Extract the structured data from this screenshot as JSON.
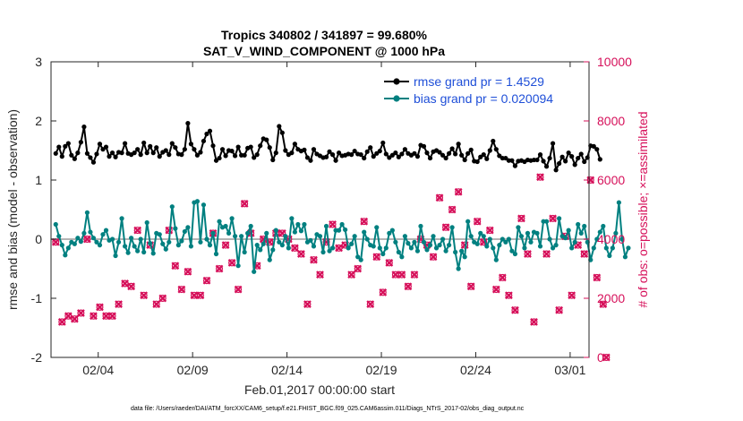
{
  "chart_data": {
    "type": "line",
    "title": "Tropics 340802 / 341897 = 99.680%",
    "subtitle": "SAT_V_WIND_COMPONENT @ 1000 hPa",
    "xlabel": "Feb.01,2017 00:00:00 start",
    "ylabel_left": "rmse and bias (model - observation)",
    "ylabel_right": "# of obs: o=possible; ×=assimilated",
    "footnote": "data file: /Users/raeder/DAI/ATM_forcXX/CAM6_setup/f.e21.FHIST_BGC.f09_025.CAM6assim.011/Diags_NTrS_2017-02/obs_diag_output.nc",
    "xlim": [
      1,
      29.5
    ],
    "ylim_left": [
      -2,
      3
    ],
    "ylim_right": [
      0,
      10000
    ],
    "x_ticks": [
      3.5,
      8.5,
      13.5,
      18.5,
      23.5,
      28.5
    ],
    "x_tick_labels": [
      "02/04",
      "02/09",
      "02/14",
      "02/19",
      "02/24",
      "03/01"
    ],
    "y_ticks_left": [
      -2,
      -1,
      0,
      1,
      2,
      3
    ],
    "y_ticks_right": [
      0,
      2000,
      4000,
      6000,
      8000,
      10000
    ],
    "zero_line": 0,
    "colors": {
      "rmse": "#000000",
      "bias": "#008080",
      "obs": "#d6105a",
      "legend_text": "#1f4fd8",
      "zero_line": "#b4b4b4"
    },
    "series": [
      {
        "name": "rmse grand pr = 1.4529",
        "axis": "left",
        "marker": "circle",
        "color": "#000000",
        "values": [
          1.45,
          1.56,
          1.4,
          1.57,
          1.62,
          1.42,
          1.36,
          1.46,
          1.64,
          1.9,
          1.45,
          1.38,
          1.3,
          1.44,
          1.61,
          1.52,
          1.56,
          1.4,
          1.46,
          1.39,
          1.47,
          1.46,
          1.62,
          1.45,
          1.43,
          1.46,
          1.52,
          1.43,
          1.63,
          1.46,
          1.57,
          1.46,
          1.55,
          1.4,
          1.47,
          1.5,
          1.43,
          1.62,
          1.55,
          1.44,
          1.43,
          1.52,
          1.96,
          1.61,
          1.52,
          1.42,
          1.47,
          1.66,
          1.78,
          1.83,
          1.58,
          1.33,
          1.37,
          1.52,
          1.41,
          1.5,
          1.49,
          1.41,
          1.56,
          1.42,
          1.42,
          1.54,
          1.56,
          1.38,
          1.43,
          1.58,
          1.7,
          1.68,
          1.55,
          1.34,
          1.46,
          1.91,
          1.8,
          1.5,
          1.43,
          1.46,
          1.61,
          1.52,
          1.49,
          1.51,
          1.38,
          1.33,
          1.52,
          1.44,
          1.41,
          1.38,
          1.39,
          1.48,
          1.43,
          1.33,
          1.46,
          1.41,
          1.42,
          1.44,
          1.43,
          1.49,
          1.44,
          1.43,
          1.37,
          1.48,
          1.55,
          1.4,
          1.45,
          1.49,
          1.63,
          1.44,
          1.38,
          1.42,
          1.46,
          1.39,
          1.44,
          1.52,
          1.45,
          1.42,
          1.45,
          1.4,
          1.59,
          1.57,
          1.46,
          1.37,
          1.48,
          1.5,
          1.47,
          1.42,
          1.37,
          1.45,
          1.53,
          1.44,
          1.61,
          1.42,
          1.34,
          1.45,
          1.51,
          1.32,
          1.31,
          1.39,
          1.43,
          1.36,
          1.5,
          1.66,
          1.52,
          1.41,
          1.37,
          1.37,
          1.33,
          1.33,
          1.24,
          1.32,
          1.33,
          1.31,
          1.34,
          1.33,
          1.34,
          1.34,
          1.43,
          1.32,
          1.23,
          1.37,
          1.62,
          1.17,
          1.28,
          1.39,
          1.32,
          1.46,
          1.4,
          1.26,
          1.37,
          1.44,
          1.31,
          1.38,
          1.58,
          1.57,
          1.52,
          1.35
        ]
      },
      {
        "name": "bias grand pr = 0.020094",
        "axis": "left",
        "marker": "circle",
        "color": "#008080",
        "values": [
          0.25,
          0.05,
          -0.1,
          -0.27,
          -0.15,
          -0.05,
          -0.08,
          0.02,
          -0.04,
          0.1,
          0.45,
          0.12,
          0.02,
          -0.05,
          -0.1,
          0.08,
          0.15,
          -0.02,
          0.0,
          -0.28,
          -0.05,
          0.35,
          -0.12,
          -0.23,
          0.02,
          -0.12,
          -0.2,
          0.0,
          -0.22,
          0.28,
          -0.07,
          -0.24,
          0.1,
          0.08,
          -0.08,
          -0.17,
          -0.05,
          0.55,
          0.18,
          -0.1,
          -0.03,
          0.13,
          0.2,
          -0.12,
          0.62,
          0.64,
          -0.05,
          0.58,
          0.0,
          -0.1,
          0.1,
          -0.25,
          0.3,
          0.2,
          0.22,
          0.1,
          0.35,
          0.05,
          -0.45,
          0.05,
          -0.22,
          0.1,
          0.22,
          -0.55,
          -0.1,
          -0.18,
          -0.08,
          0.1,
          -0.35,
          -0.18,
          0.15,
          -0.05,
          -0.1,
          0.05,
          -0.15,
          0.35,
          0.12,
          0.25,
          0.14,
          0.25,
          -0.05,
          -0.02,
          -0.12,
          0.08,
          0.05,
          -0.22,
          0.22,
          -0.2,
          -0.15,
          0.15,
          0.15,
          0.25,
          0.16,
          -0.15,
          -0.08,
          0.05,
          -0.3,
          -0.35,
          0.12,
          0.0,
          -0.1,
          -0.12,
          0.2,
          -0.15,
          -0.25,
          -0.15,
          0.1,
          0.15,
          -0.05,
          -0.22,
          -0.3,
          0.05,
          -0.07,
          -0.15,
          -0.05,
          -0.2,
          0.22,
          -0.05,
          -0.18,
          -0.1,
          0.05,
          -0.15,
          -0.1,
          0.0,
          -0.2,
          -0.1,
          0.2,
          -0.22,
          -0.5,
          -0.2,
          -0.3,
          0.3,
          0.05,
          -0.05,
          -0.08,
          0.1,
          0.05,
          -0.12,
          0.0,
          -0.15,
          -0.35,
          -0.1,
          0.0,
          -0.05,
          0.0,
          -0.2,
          -0.25,
          0.2,
          0.05,
          -0.15,
          0.1,
          -0.05,
          0.12,
          0.1,
          -0.12,
          0.3,
          0.3,
          0.0,
          -0.15,
          -0.1,
          0.35,
          0.05,
          0.02,
          0.15,
          -0.15,
          -0.05,
          0.25,
          0.1,
          0.22,
          -0.05,
          -0.35,
          -0.15,
          0.0,
          0.12,
          0.22,
          -0.15,
          -0.28,
          -0.15,
          0.1,
          0.62,
          0.0,
          -0.3,
          -0.15
        ]
      },
      {
        "name": "# of obs possible",
        "axis": "right",
        "marker": "circle-open",
        "color": "#d6105a",
        "values": [
          3900,
          2500,
          1200,
          2200,
          1400,
          2300,
          1300,
          2800,
          1500,
          1700,
          4000,
          2600,
          1400,
          1500,
          1700,
          3700,
          1400,
          2300,
          1400,
          2500,
          1800,
          2900,
          2500,
          3200,
          2400,
          2700,
          4300,
          3500,
          2100,
          2200,
          3800,
          1300,
          1800,
          3300,
          2000,
          2300,
          4300,
          3400,
          3100,
          2000,
          2300,
          3700,
          2900,
          4400,
          2100,
          3500,
          2100,
          2300,
          2600,
          2400,
          4200,
          2800,
          3000,
          3600,
          3800,
          3700,
          3200,
          4500,
          2300,
          3600,
          5200,
          3100,
          4200,
          2900,
          3100,
          3500,
          4000,
          2600,
          3900,
          3200,
          4200,
          4800,
          4200,
          3500,
          4000,
          2900,
          3700,
          4100,
          3500,
          3600,
          1800,
          2900,
          3300,
          3800,
          2800,
          4000,
          3900,
          2500,
          4500,
          2600,
          3700,
          2200,
          3800,
          2700,
          2800,
          1900,
          3000,
          2600,
          4600,
          2400,
          1800,
          1700,
          3400,
          3200,
          2200,
          3400,
          3200,
          4300,
          2800,
          3700,
          2800,
          4400,
          2400,
          2400,
          2800,
          3200,
          4000,
          5800,
          3800,
          6100,
          3400,
          3000,
          5400,
          5000,
          4400,
          3300,
          5000,
          4800,
          5600,
          3400,
          3800,
          2900,
          2400,
          2500,
          4600,
          4700,
          3900,
          4100,
          4300,
          5100,
          2300,
          2800,
          2700,
          2400,
          2100,
          2500,
          1600,
          2200,
          4700,
          5000,
          3500,
          2400,
          1200,
          4200,
          6100,
          3700,
          3500,
          3800,
          4700,
          2600,
          1600,
          1300,
          4100,
          3100,
          2100,
          2900,
          3800,
          4700,
          3500,
          1900,
          6000,
          3300,
          2700,
          2200,
          1800,
          0
        ]
      },
      {
        "name": "# of obs assimilated",
        "axis": "right",
        "marker": "cross",
        "color": "#d6105a",
        "values": [
          3900,
          2500,
          1200,
          2200,
          1400,
          2300,
          1300,
          2800,
          1500,
          1700,
          4000,
          2600,
          1400,
          1500,
          1700,
          3700,
          1400,
          2300,
          1400,
          2500,
          1800,
          2900,
          2500,
          3200,
          2400,
          2700,
          4300,
          3500,
          2100,
          2200,
          3800,
          1300,
          1800,
          3300,
          2000,
          2300,
          4300,
          3400,
          3100,
          2000,
          2300,
          3700,
          2900,
          4400,
          2100,
          3500,
          2100,
          2300,
          2600,
          2400,
          4200,
          2800,
          3000,
          3600,
          3800,
          3700,
          3200,
          4500,
          2300,
          3600,
          5200,
          3100,
          4200,
          2900,
          3100,
          3500,
          4000,
          2600,
          3900,
          3200,
          4200,
          4800,
          4200,
          3500,
          4000,
          2900,
          3700,
          4100,
          3500,
          3600,
          1800,
          2900,
          3300,
          3800,
          2800,
          4000,
          3900,
          2500,
          4500,
          2600,
          3700,
          2200,
          3800,
          2700,
          2800,
          1900,
          3000,
          2600,
          4600,
          2400,
          1800,
          1700,
          3400,
          3200,
          2200,
          3400,
          3200,
          4300,
          2800,
          3700,
          2800,
          4400,
          2400,
          2400,
          2800,
          3200,
          4000,
          5800,
          3800,
          6100,
          3400,
          3000,
          5400,
          5000,
          4400,
          3300,
          5000,
          4800,
          5600,
          3400,
          3800,
          2900,
          2400,
          2500,
          4600,
          4700,
          3900,
          4100,
          4300,
          5100,
          2300,
          2800,
          2700,
          2400,
          2100,
          2500,
          1600,
          2200,
          4700,
          5000,
          3500,
          2400,
          1200,
          4200,
          6100,
          3700,
          3500,
          3800,
          4700,
          2600,
          1600,
          1300,
          4100,
          3100,
          2100,
          2900,
          3800,
          4700,
          3500,
          1900,
          6000,
          3300,
          2700,
          2200,
          1800,
          0
        ]
      }
    ]
  }
}
